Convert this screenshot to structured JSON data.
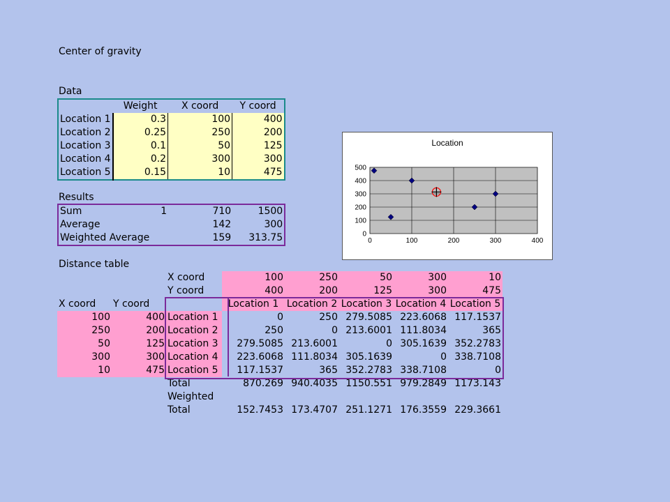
{
  "title": "Center of gravity",
  "data_section": {
    "label": "Data",
    "headers": [
      "Weight",
      "X coord",
      "Y coord"
    ],
    "rows": [
      {
        "name": "Location 1",
        "weight": "0.3",
        "x": "100",
        "y": "400"
      },
      {
        "name": "Location 2",
        "weight": "0.25",
        "x": "250",
        "y": "200"
      },
      {
        "name": "Location 3",
        "weight": "0.1",
        "x": "50",
        "y": "125"
      },
      {
        "name": "Location 4",
        "weight": "0.2",
        "x": "300",
        "y": "300"
      },
      {
        "name": "Location 5",
        "weight": "0.15",
        "x": "10",
        "y": "475"
      }
    ]
  },
  "results_section": {
    "label": "Results",
    "rows": [
      {
        "name": "Sum",
        "weight": "1",
        "x": "710",
        "y": "1500"
      },
      {
        "name": "Average",
        "weight": "",
        "x": "142",
        "y": "300"
      },
      {
        "name": "Weighted Average",
        "weight": "",
        "x": "159",
        "y": "313.75"
      }
    ]
  },
  "distance_section": {
    "label": "Distance table",
    "x_coord_label": "X coord",
    "y_coord_label": "Y coord",
    "x_coords": [
      "100",
      "250",
      "50",
      "300",
      "10"
    ],
    "y_coords": [
      "400",
      "200",
      "125",
      "300",
      "475"
    ],
    "col_headers": [
      "Location 1",
      "Location 2",
      "Location 3",
      "Location 4",
      "Location 5"
    ],
    "rows": [
      {
        "x": "100",
        "y": "400",
        "name": "Location 1",
        "d": [
          "0",
          "250",
          "279.5085",
          "223.6068",
          "117.1537"
        ]
      },
      {
        "x": "250",
        "y": "200",
        "name": "Location 2",
        "d": [
          "250",
          "0",
          "213.6001",
          "111.8034",
          "365"
        ]
      },
      {
        "x": "50",
        "y": "125",
        "name": "Location 3",
        "d": [
          "279.5085",
          "213.6001",
          "0",
          "305.1639",
          "352.2783"
        ]
      },
      {
        "x": "300",
        "y": "300",
        "name": "Location 4",
        "d": [
          "223.6068",
          "111.8034",
          "305.1639",
          "0",
          "338.7108"
        ]
      },
      {
        "x": "10",
        "y": "475",
        "name": "Location 5",
        "d": [
          "117.1537",
          "365",
          "352.2783",
          "338.7108",
          "0"
        ]
      }
    ],
    "total_label": "Total",
    "totals": [
      "870.269",
      "940.4035",
      "1150.551",
      "979.2849",
      "1173.143"
    ],
    "weighted_label": "Weighted",
    "weighted_total_label": "Total",
    "weighted_totals": [
      "152.7453",
      "173.4707",
      "251.1271",
      "176.3559",
      "229.3661"
    ]
  },
  "chart_data": {
    "type": "scatter",
    "title": "Location",
    "xlim": [
      0,
      400
    ],
    "ylim": [
      0,
      500
    ],
    "x_ticks": [
      "0",
      "100",
      "200",
      "300",
      "400"
    ],
    "y_ticks": [
      "0",
      "100",
      "200",
      "300",
      "400",
      "500"
    ],
    "grid": true,
    "series": [
      {
        "points": [
          [
            100,
            400
          ],
          [
            250,
            200
          ],
          [
            50,
            125
          ],
          [
            300,
            300
          ],
          [
            10,
            475
          ]
        ],
        "marker": "diamond",
        "color": "#000080"
      },
      {
        "points": [
          [
            159,
            313.75
          ]
        ],
        "marker": "cross-circle",
        "color": "#ff0000"
      }
    ],
    "plot_background": "#c0c0c0"
  }
}
